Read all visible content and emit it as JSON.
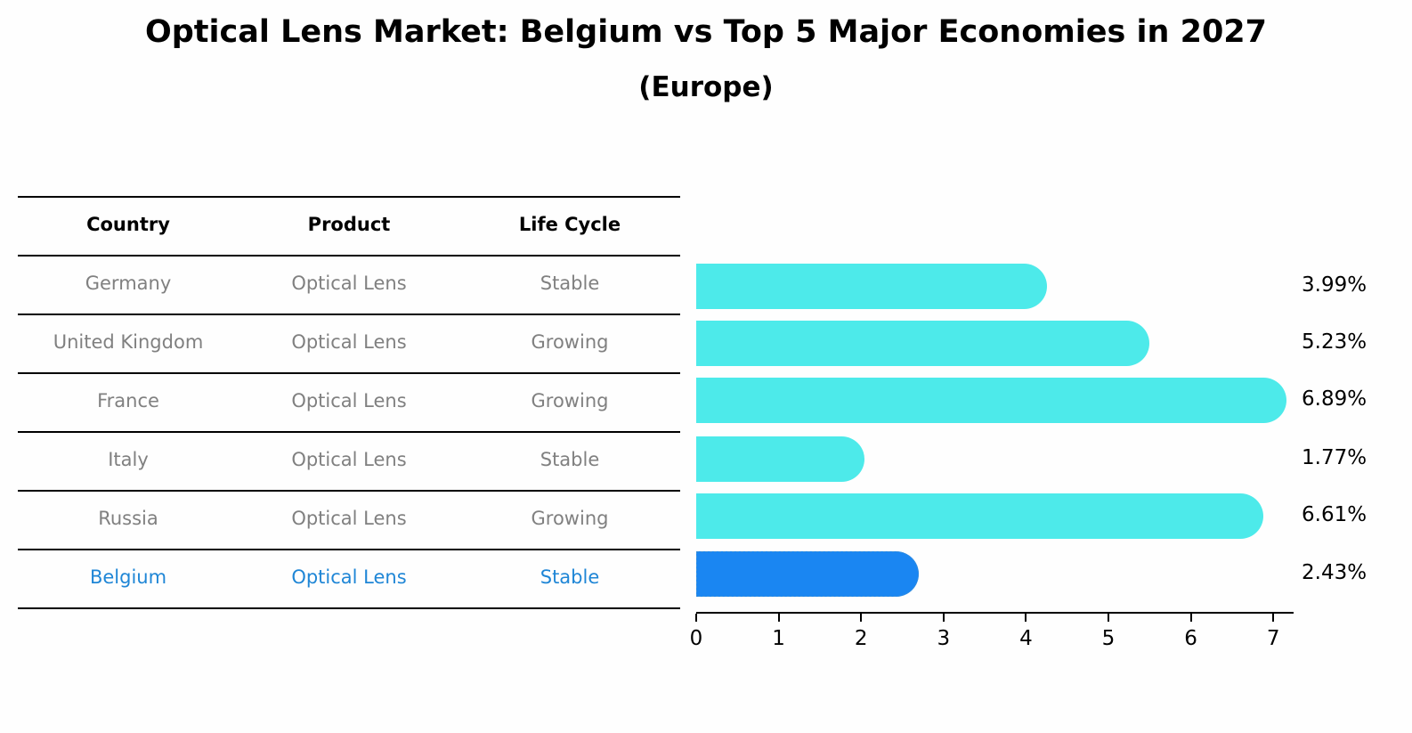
{
  "title": "Optical Lens Market: Belgium vs Top 5 Major Economies in 2027",
  "subtitle": "(Europe)",
  "table": {
    "headers": [
      "Country",
      "Product",
      "Life Cycle"
    ],
    "rows": [
      [
        "Germany",
        "Optical Lens",
        "Stable"
      ],
      [
        "United Kingdom",
        "Optical Lens",
        "Growing"
      ],
      [
        "France",
        "Optical Lens",
        "Growing"
      ],
      [
        "Italy",
        "Optical Lens",
        "Stable"
      ],
      [
        "Russia",
        "Optical Lens",
        "Growing"
      ],
      [
        "Belgium",
        "Optical Lens",
        "Stable"
      ]
    ],
    "highlight_row": 5,
    "colors": {
      "text": "#808080",
      "highlight": "#1f86d6"
    }
  },
  "chart_data": {
    "type": "bar",
    "orientation": "horizontal",
    "title": "Optical Lens Market: Belgium vs Top 5 Major Economies in 2027",
    "subtitle": "(Europe)",
    "categories": [
      "Germany",
      "United Kingdom",
      "France",
      "Italy",
      "Russia",
      "Belgium"
    ],
    "values": [
      3.99,
      5.23,
      6.89,
      1.77,
      6.61,
      2.43
    ],
    "value_labels": [
      "3.99%",
      "5.23%",
      "6.89%",
      "1.77%",
      "6.61%",
      "2.43%"
    ],
    "colors": [
      "#4deaea",
      "#4deaea",
      "#4deaea",
      "#4deaea",
      "#4deaea",
      "#1a86f2"
    ],
    "highlight": "Belgium",
    "xlabel": "",
    "ylabel": "",
    "xlim": [
      0,
      7.25
    ],
    "xticks": [
      0,
      1,
      2,
      3,
      4,
      5,
      6,
      7
    ],
    "grid": false,
    "legend": null
  }
}
